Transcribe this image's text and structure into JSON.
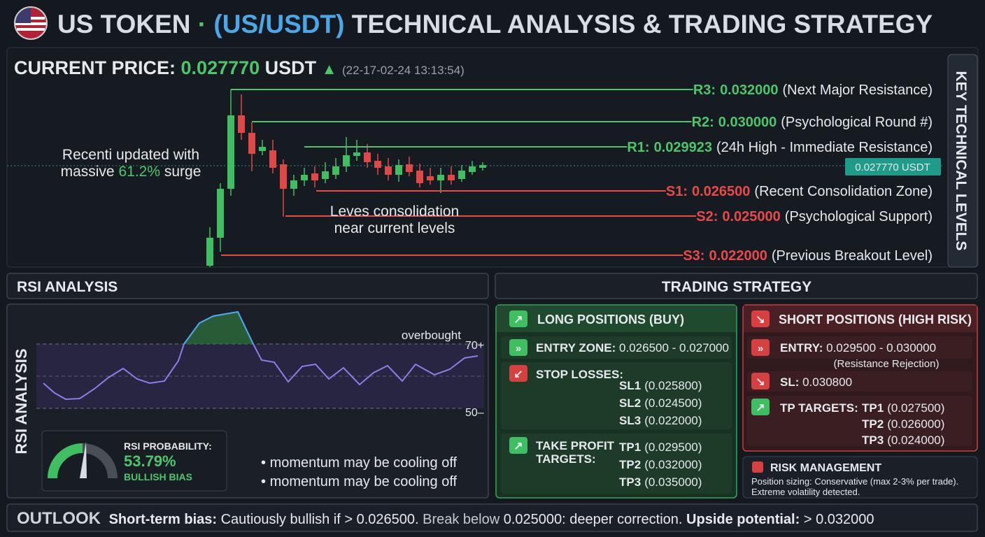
{
  "header": {
    "title_prefix": "US TOKEN",
    "separator": "·",
    "pair": "(US/USDT)",
    "title_suffix": "TECHNICAL ANALYSIS & TRADING STRATEGY"
  },
  "price": {
    "label": "CURRENT PRICE:",
    "value": "0.027770",
    "unit": "USDT",
    "timestamp": "(22-17-02-24 13:13:54)",
    "badge": "0.027770 USDT"
  },
  "price_chart": {
    "surge_note": {
      "line1": "Recenti updated with",
      "before": "massive",
      "percent": "61.2%",
      "after": "surge"
    },
    "consolidation_note": [
      "Leves consolidation",
      "near current levels"
    ],
    "side_label": "KEY TECHNICAL LEVELS",
    "levels": [
      {
        "name": "R3:",
        "value": "0.032000",
        "note": "(Next Major Resistance)"
      },
      {
        "name": "R2:",
        "value": "0.030000",
        "note": "(Psychological Round #)"
      },
      {
        "name": "R1:",
        "value": "0.029923",
        "note": "(24h High - Immediate Resistance)"
      },
      {
        "name": "S1:",
        "value": "0.026500",
        "note": "(Recent Consolidation Zone)"
      },
      {
        "name": "S2:",
        "value": "0.025000",
        "note": "(Psychological Support)"
      },
      {
        "name": "S3:",
        "value": "0.022000",
        "note": "(Previous Breakout Level)"
      }
    ]
  },
  "rsi": {
    "title": "RSI ANALYSIS",
    "side_label": "RSI ANALYSIS",
    "overbought": "overbought",
    "upper": "70+",
    "lower": "50–",
    "probability_label": "RSI PROBABILITY:",
    "probability": "53.79%",
    "bias": "BULLISH BIAS",
    "notes": [
      "momentum may be cooling off",
      "momentum may be cooling off"
    ]
  },
  "strategy": {
    "title": "TRADING STRATEGY",
    "long": {
      "title": "LONG POSITIONS (BUY)",
      "entry_label": "ENTRY ZONE:",
      "entry": "0.026500 - 0.027000",
      "stop_label": "STOP LOSSES:",
      "stops": [
        {
          "name": "SL1",
          "value": "(0.025800)"
        },
        {
          "name": "SL2",
          "value": "(0.024500)"
        },
        {
          "name": "SL3",
          "value": "(0.022000)"
        }
      ],
      "tp_label": [
        "TAKE PROFIT",
        "TARGETS:"
      ],
      "targets": [
        {
          "name": "TP1",
          "value": "(0.029500)"
        },
        {
          "name": "TP2",
          "value": "(0.032000)"
        },
        {
          "name": "TP3",
          "value": "(0.035000)"
        }
      ]
    },
    "short": {
      "title": "SHORT POSITIONS (HIGH RISK)",
      "entry_label": "ENTRY:",
      "entry": "0.029500 - 0.030000",
      "entry_note": "(Resistance Rejection)",
      "sl_label": "SL:",
      "sl": "0.030800",
      "tp_label": "TP TARGETS:",
      "targets": [
        {
          "name": "TP1",
          "value": "(0.027500)"
        },
        {
          "name": "TP2",
          "value": "(0.026000)"
        },
        {
          "name": "TP3",
          "value": "(0.024000)"
        }
      ]
    },
    "risk": {
      "title": "RISK MANAGEMENT",
      "lines": [
        "Position sizing: Conservative (max 2-3% per trade).",
        "Extreme volatility detected."
      ]
    }
  },
  "outlook": {
    "label": "OUTLOOK",
    "bias_label": "Short-term bias:",
    "bias": "Cautiously bullish if > 0.026500.",
    "break_label": "Break below",
    "break": "0.025000: deeper correction.",
    "upside_label": "Upside potential:",
    "upside": "> 0.032000"
  }
}
